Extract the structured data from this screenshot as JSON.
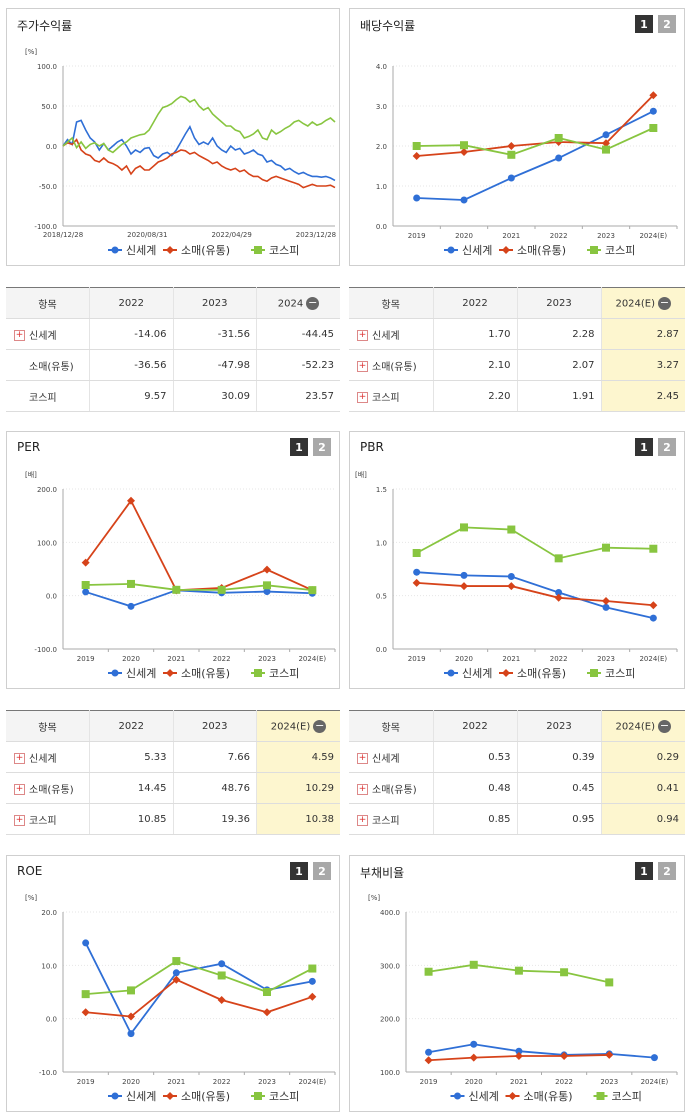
{
  "colors": {
    "shinsegae": "#2f6fd6",
    "retail": "#d6431a",
    "kospi": "#88c540"
  },
  "panels": {
    "stock": {
      "title": "주가수익률",
      "legend": [
        "신세계",
        "소매(유통)",
        "코스피"
      ]
    },
    "dividend": {
      "title": "배당수익률",
      "btn1": "1",
      "btn2": "2",
      "legend": [
        "신세계",
        "소매(유통)",
        "코스피"
      ]
    },
    "per": {
      "title": "PER",
      "btn1": "1",
      "btn2": "2",
      "legend": [
        "신세계",
        "소매(유통)",
        "코스피"
      ]
    },
    "pbr": {
      "title": "PBR",
      "btn1": "1",
      "btn2": "2",
      "legend": [
        "신세계",
        "소매(유통)",
        "코스피"
      ]
    },
    "roe": {
      "title": "ROE",
      "btn1": "1",
      "btn2": "2",
      "legend": [
        "신세계",
        "소매(유통)",
        "코스피"
      ]
    },
    "debt": {
      "title": "부채비율",
      "btn1": "1",
      "btn2": "2",
      "legend": [
        "신세계",
        "소매(유통)",
        "코스피"
      ]
    }
  },
  "chart_data": [
    {
      "id": "stock",
      "type": "line",
      "title": "주가수익률",
      "ylabel": "[%]",
      "ylim": [
        -100,
        100
      ],
      "yticks": [
        "100.0",
        "50.0",
        "0.0",
        "-50.0",
        "-100.0"
      ],
      "xticks": [
        "2018/12/28",
        "2020/08/31",
        "2022/04/29",
        "2023/12/28"
      ],
      "series": [
        {
          "name": "신세계",
          "values": [
            0,
            8,
            2,
            30,
            32,
            20,
            10,
            5,
            -5,
            3,
            -5,
            0,
            5,
            8,
            0,
            -10,
            -5,
            -8,
            -3,
            -2,
            -12,
            -15,
            -10,
            -8,
            -12,
            -5,
            5,
            15,
            24,
            10,
            2,
            5,
            2,
            10,
            0,
            -5,
            -8,
            0,
            -5,
            -3,
            -10,
            -8,
            -5,
            -10,
            -12,
            -20,
            -18,
            -23,
            -25,
            -30,
            -28,
            -32,
            -35,
            -33,
            -36,
            -38,
            -38,
            -39,
            -38,
            -40,
            -43
          ]
        },
        {
          "name": "소매(유통)",
          "values": [
            0,
            4,
            2,
            8,
            -5,
            -10,
            -12,
            -18,
            -20,
            -15,
            -20,
            -22,
            -25,
            -30,
            -25,
            -35,
            -28,
            -25,
            -30,
            -30,
            -25,
            -20,
            -18,
            -15,
            -10,
            -8,
            -5,
            -6,
            -10,
            -8,
            -12,
            -15,
            -18,
            -22,
            -20,
            -25,
            -28,
            -30,
            -28,
            -32,
            -30,
            -35,
            -38,
            -38,
            -42,
            -44,
            -40,
            -38,
            -40,
            -42,
            -44,
            -46,
            -48,
            -52,
            -50,
            -48,
            -50,
            -50,
            -50,
            -49,
            -52
          ]
        },
        {
          "name": "코스피",
          "values": [
            0,
            5,
            10,
            -2,
            5,
            -3,
            2,
            4,
            0,
            3,
            -5,
            -8,
            -3,
            2,
            5,
            10,
            12,
            14,
            15,
            20,
            30,
            40,
            48,
            50,
            53,
            58,
            62,
            60,
            55,
            58,
            50,
            45,
            48,
            40,
            35,
            30,
            25,
            25,
            20,
            18,
            10,
            12,
            15,
            20,
            10,
            8,
            20,
            15,
            18,
            22,
            25,
            30,
            32,
            28,
            25,
            30,
            26,
            28,
            32,
            35,
            30
          ]
        }
      ]
    },
    {
      "id": "dividend",
      "type": "line",
      "title": "배당수익률",
      "ylim": [
        0,
        4
      ],
      "yticks": [
        "4.0",
        "3.0",
        "2.0",
        "1.0",
        "0.0"
      ],
      "x": [
        "2019",
        "2020",
        "2021",
        "2022",
        "2023",
        "2024(E)"
      ],
      "series": [
        {
          "name": "신세계",
          "values": [
            0.7,
            0.65,
            1.2,
            1.7,
            2.28,
            2.87
          ]
        },
        {
          "name": "소매(유통)",
          "values": [
            1.75,
            1.85,
            2.0,
            2.1,
            2.07,
            3.27
          ]
        },
        {
          "name": "코스피",
          "values": [
            2.0,
            2.02,
            1.78,
            2.2,
            1.91,
            2.45
          ]
        }
      ]
    },
    {
      "id": "per",
      "type": "line",
      "title": "PER",
      "ylabel": "[배]",
      "ylim": [
        -100,
        200
      ],
      "yticks": [
        "200.0",
        "100.0",
        "0.0",
        "-100.0"
      ],
      "x": [
        "2019",
        "2020",
        "2021",
        "2022",
        "2023",
        "2024(E)"
      ],
      "series": [
        {
          "name": "신세계",
          "values": [
            7,
            -20,
            10,
            5.33,
            7.66,
            4.59
          ]
        },
        {
          "name": "소매(유통)",
          "values": [
            62,
            178,
            10,
            14.45,
            48.76,
            10.29
          ]
        },
        {
          "name": "코스피",
          "values": [
            20,
            22,
            11,
            10.85,
            19.36,
            10.38
          ]
        }
      ]
    },
    {
      "id": "pbr",
      "type": "line",
      "title": "PBR",
      "ylabel": "[배]",
      "ylim": [
        0,
        1.5
      ],
      "yticks": [
        "1.5",
        "1.0",
        "0.5",
        "0.0"
      ],
      "x": [
        "2019",
        "2020",
        "2021",
        "2022",
        "2023",
        "2024(E)"
      ],
      "series": [
        {
          "name": "신세계",
          "values": [
            0.72,
            0.69,
            0.68,
            0.53,
            0.39,
            0.29
          ]
        },
        {
          "name": "소매(유통)",
          "values": [
            0.62,
            0.59,
            0.59,
            0.48,
            0.45,
            0.41
          ]
        },
        {
          "name": "코스피",
          "values": [
            0.9,
            1.14,
            1.12,
            0.85,
            0.95,
            0.94
          ]
        }
      ]
    },
    {
      "id": "roe",
      "type": "line",
      "title": "ROE",
      "ylabel": "[%]",
      "ylim": [
        -10,
        20
      ],
      "yticks": [
        "20.0",
        "10.0",
        "0.0",
        "-10.0"
      ],
      "x": [
        "2019",
        "2020",
        "2021",
        "2022",
        "2023",
        "2024(E)"
      ],
      "series": [
        {
          "name": "신세계",
          "values": [
            14.2,
            -2.8,
            8.6,
            10.3,
            5.4,
            7.0
          ]
        },
        {
          "name": "소매(유통)",
          "values": [
            1.2,
            0.4,
            7.3,
            3.5,
            1.2,
            4.1
          ]
        },
        {
          "name": "코스피",
          "values": [
            4.6,
            5.3,
            10.8,
            8.1,
            5.0,
            9.4
          ]
        }
      ]
    },
    {
      "id": "debt",
      "type": "line",
      "title": "부채비율",
      "ylabel": "[%]",
      "ylim": [
        100,
        400
      ],
      "yticks": [
        "400.0",
        "300.0",
        "200.0",
        "100.0"
      ],
      "x": [
        "2019",
        "2020",
        "2021",
        "2022",
        "2023",
        "2024(E)"
      ],
      "series": [
        {
          "name": "신세계",
          "values": [
            137,
            152,
            139,
            132,
            134,
            127
          ]
        },
        {
          "name": "소매(유통)",
          "values": [
            122,
            127,
            130,
            130,
            132,
            null
          ]
        },
        {
          "name": "코스피",
          "values": [
            288,
            301,
            290,
            287,
            268,
            null
          ]
        }
      ]
    }
  ],
  "tables": {
    "stock": {
      "headers": [
        "항목",
        "2022",
        "2023",
        "2024"
      ],
      "rows": [
        {
          "label": "신세계",
          "values": [
            "-14.06",
            "-31.56",
            "-44.45"
          ]
        },
        {
          "label": "소매(유통)",
          "values": [
            "-36.56",
            "-47.98",
            "-52.23"
          ]
        },
        {
          "label": "코스피",
          "values": [
            "9.57",
            "30.09",
            "23.57"
          ]
        }
      ]
    },
    "dividend": {
      "headers": [
        "항목",
        "2022",
        "2023",
        "2024(E)"
      ],
      "rows": [
        {
          "label": "신세계",
          "values": [
            "1.70",
            "2.28",
            "2.87"
          ]
        },
        {
          "label": "소매(유통)",
          "values": [
            "2.10",
            "2.07",
            "3.27"
          ]
        },
        {
          "label": "코스피",
          "values": [
            "2.20",
            "1.91",
            "2.45"
          ]
        }
      ]
    },
    "per": {
      "headers": [
        "항목",
        "2022",
        "2023",
        "2024(E)"
      ],
      "rows": [
        {
          "label": "신세계",
          "values": [
            "5.33",
            "7.66",
            "4.59"
          ]
        },
        {
          "label": "소매(유통)",
          "values": [
            "14.45",
            "48.76",
            "10.29"
          ]
        },
        {
          "label": "코스피",
          "values": [
            "10.85",
            "19.36",
            "10.38"
          ]
        }
      ]
    },
    "pbr": {
      "headers": [
        "항목",
        "2022",
        "2023",
        "2024(E)"
      ],
      "rows": [
        {
          "label": "신세계",
          "values": [
            "0.53",
            "0.39",
            "0.29"
          ]
        },
        {
          "label": "소매(유통)",
          "values": [
            "0.48",
            "0.45",
            "0.41"
          ]
        },
        {
          "label": "코스피",
          "values": [
            "0.85",
            "0.95",
            "0.94"
          ]
        }
      ]
    }
  }
}
